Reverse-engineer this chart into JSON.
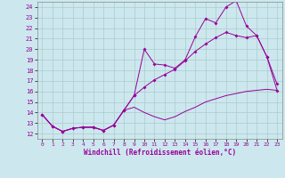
{
  "xlabel": "Windchill (Refroidissement éolien,°C)",
  "background_color": "#cce8ee",
  "grid_color": "#aacccc",
  "line_color": "#990099",
  "xlim": [
    -0.5,
    23.5
  ],
  "ylim": [
    11.5,
    24.5
  ],
  "yticks": [
    12,
    13,
    14,
    15,
    16,
    17,
    18,
    19,
    20,
    21,
    22,
    23,
    24
  ],
  "xticks": [
    0,
    1,
    2,
    3,
    4,
    5,
    6,
    7,
    8,
    9,
    10,
    11,
    12,
    13,
    14,
    15,
    16,
    17,
    18,
    19,
    20,
    21,
    22,
    23
  ],
  "line1_x": [
    0,
    1,
    2,
    3,
    4,
    5,
    6,
    7,
    8,
    9,
    10,
    11,
    12,
    13,
    14,
    15,
    16,
    17,
    18,
    19,
    20,
    21,
    22,
    23
  ],
  "line1_y": [
    13.8,
    12.7,
    12.2,
    12.5,
    12.6,
    12.6,
    12.3,
    12.8,
    14.2,
    15.6,
    20.0,
    18.6,
    18.5,
    18.2,
    19.0,
    21.2,
    22.9,
    22.5,
    24.0,
    24.6,
    22.2,
    21.3,
    19.3,
    16.7
  ],
  "line2_x": [
    0,
    1,
    2,
    3,
    4,
    5,
    6,
    7,
    8,
    9,
    10,
    11,
    12,
    13,
    14,
    15,
    16,
    17,
    18,
    19,
    20,
    21,
    22,
    23
  ],
  "line2_y": [
    13.8,
    12.7,
    12.2,
    12.5,
    12.6,
    12.6,
    12.3,
    12.8,
    14.2,
    15.6,
    16.4,
    17.1,
    17.6,
    18.1,
    18.9,
    19.8,
    20.5,
    21.1,
    21.6,
    21.3,
    21.1,
    21.3,
    19.3,
    16.1
  ],
  "line3_x": [
    0,
    1,
    2,
    3,
    4,
    5,
    6,
    7,
    8,
    9,
    10,
    11,
    12,
    13,
    14,
    15,
    16,
    17,
    18,
    19,
    20,
    21,
    22,
    23
  ],
  "line3_y": [
    13.8,
    12.7,
    12.2,
    12.5,
    12.6,
    12.6,
    12.3,
    12.8,
    14.2,
    14.5,
    14.0,
    13.6,
    13.3,
    13.6,
    14.1,
    14.5,
    15.0,
    15.3,
    15.6,
    15.8,
    16.0,
    16.1,
    16.2,
    16.1
  ]
}
